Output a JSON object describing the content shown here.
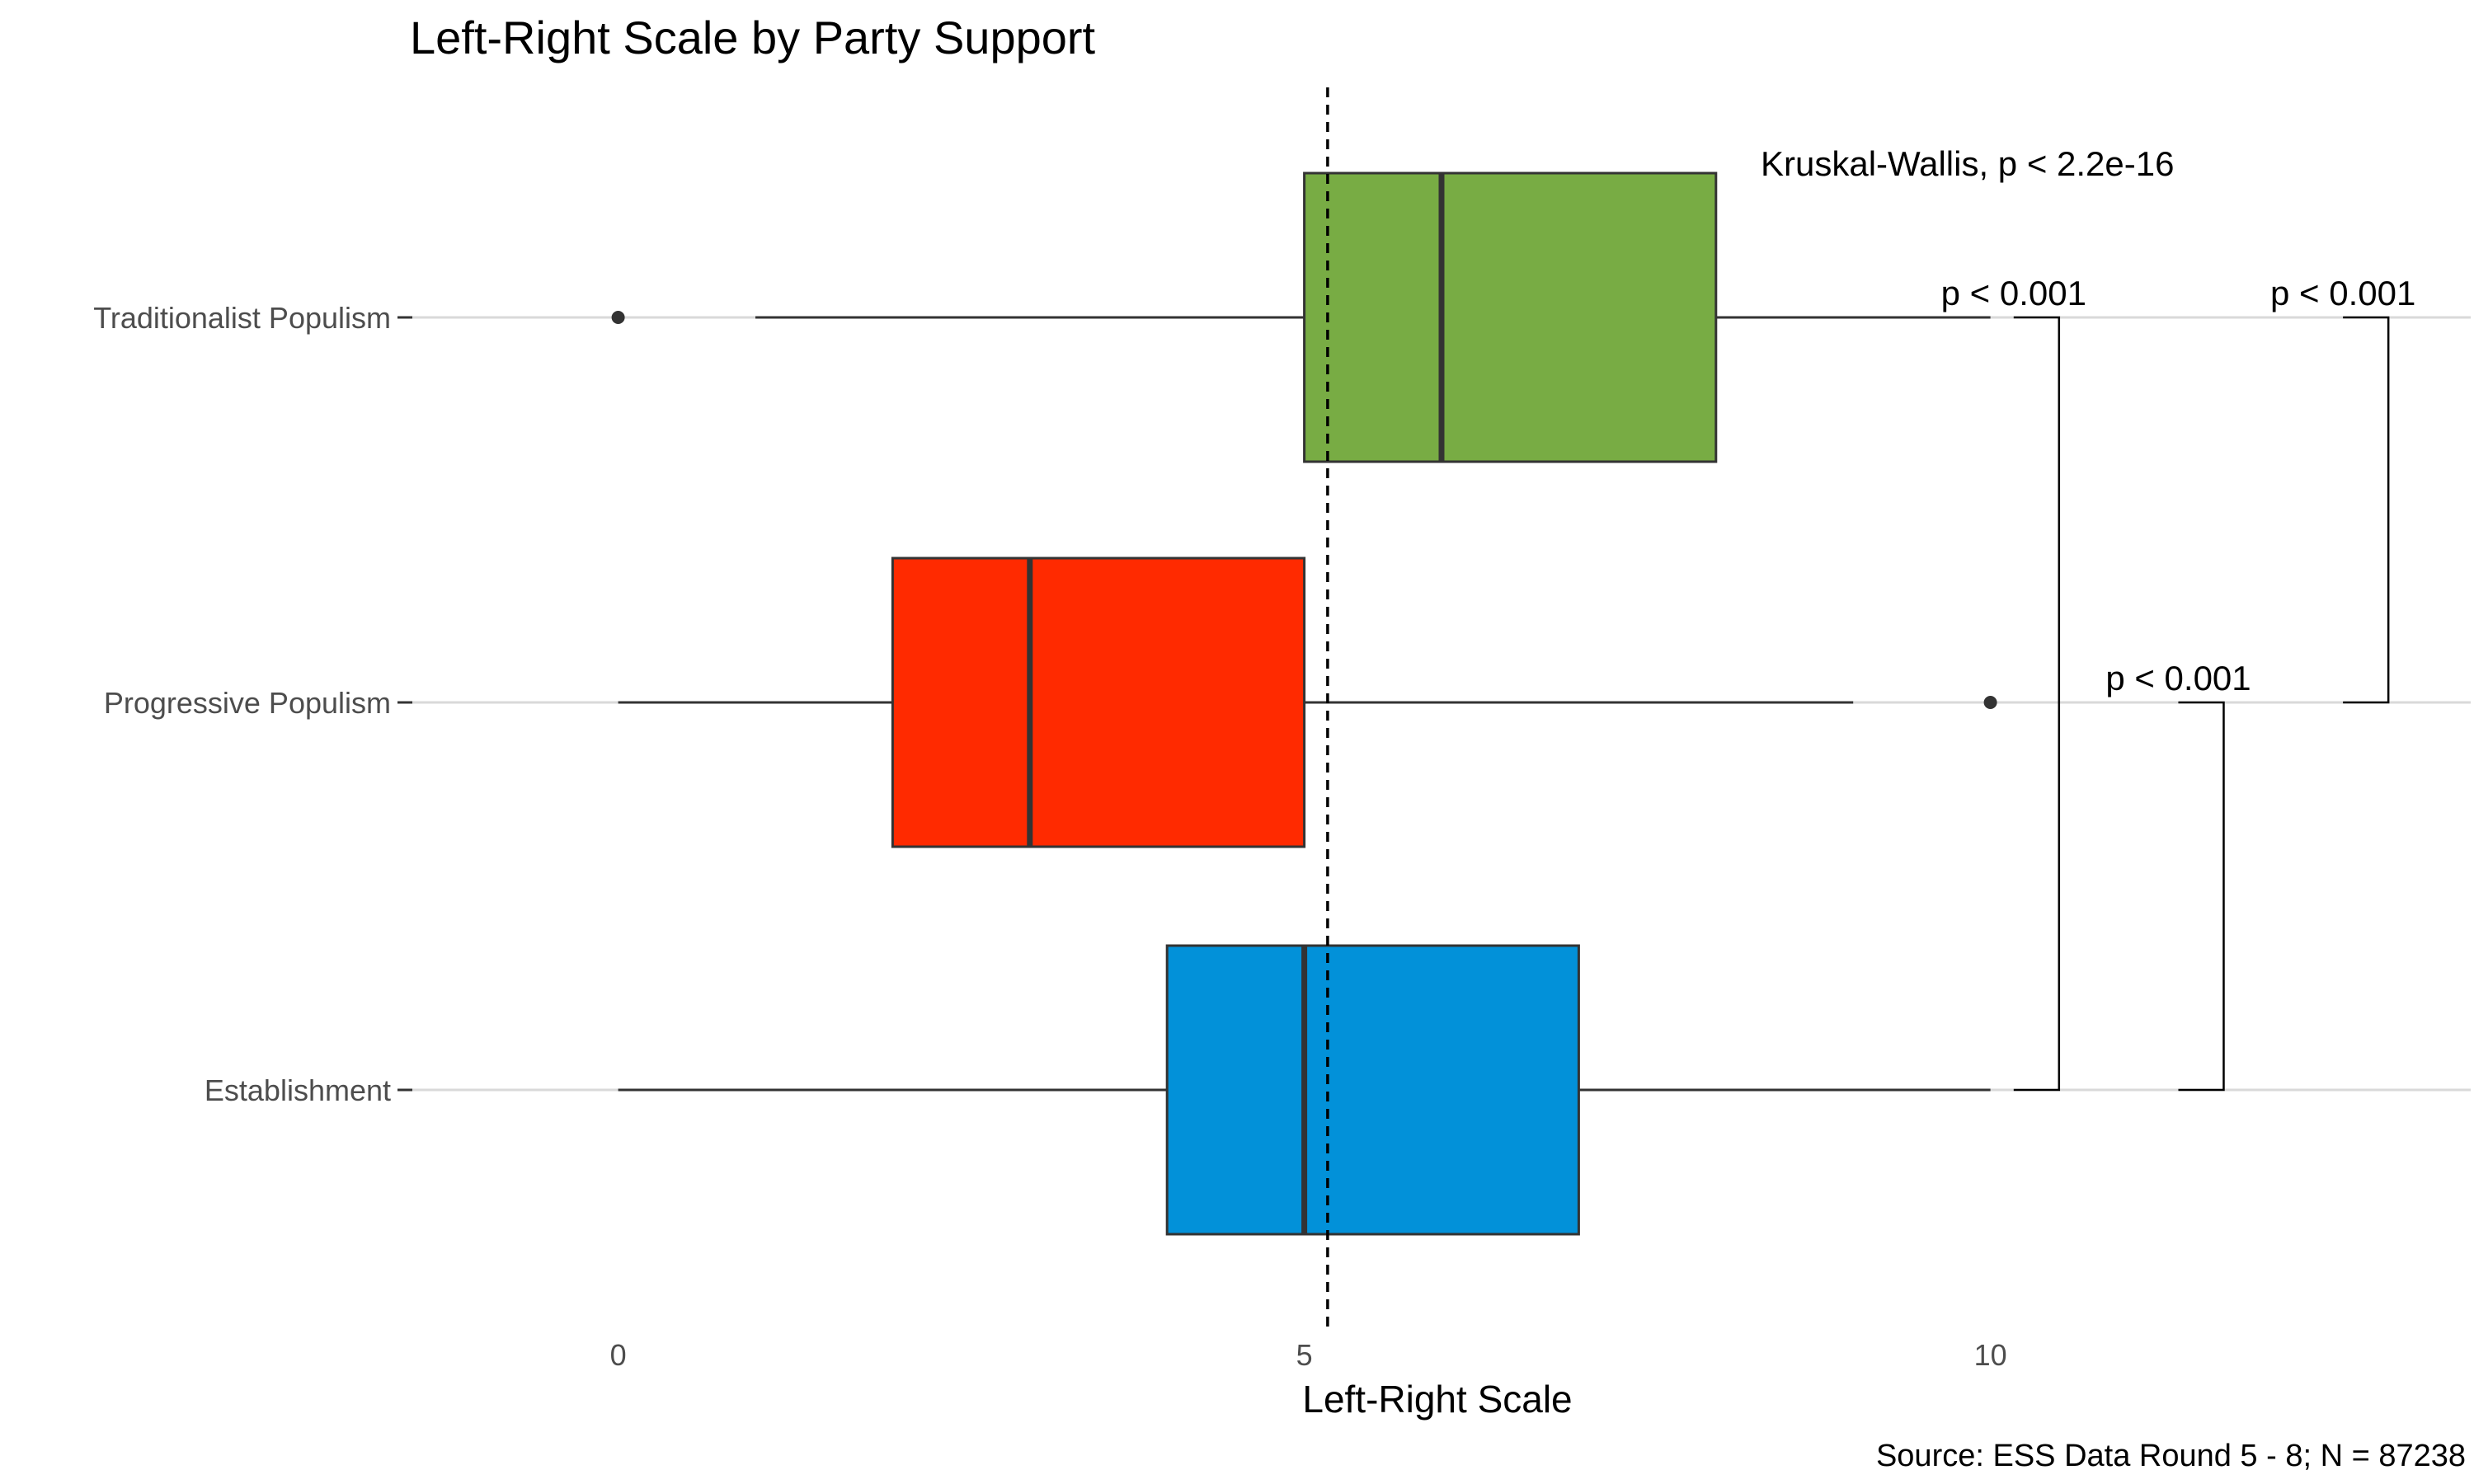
{
  "chart_data": {
    "type": "boxplot",
    "orientation": "horizontal",
    "title": "Left-Right Scale by Party Support",
    "xlabel": "Left-Right Scale",
    "ylabel": "",
    "caption": "Source: ESS Data Round 5 - 8; N = 87238",
    "xlim": [
      -1.5,
      13.5
    ],
    "xticks": [
      0,
      5,
      10
    ],
    "grid": "horizontal major only",
    "legend": "none",
    "reference_line": {
      "x": 5.17,
      "style": "dashed"
    },
    "categories": [
      "Traditionalist Populism",
      "Progressive Populism",
      "Establishment"
    ],
    "series": [
      {
        "category": "Traditionalist Populism",
        "whisker_low": 1,
        "q1": 5,
        "median": 6,
        "q3": 8,
        "whisker_high": 10,
        "outliers": [
          0
        ],
        "color": "#78AC44"
      },
      {
        "category": "Progressive Populism",
        "whisker_low": 0,
        "q1": 2,
        "median": 3,
        "q3": 5,
        "whisker_high": 9,
        "outliers": [
          10
        ],
        "color": "#FF2A00"
      },
      {
        "category": "Establishment",
        "whisker_low": 0,
        "q1": 4,
        "median": 5,
        "q3": 7,
        "whisker_high": 10,
        "outliers": [],
        "color": "#0291D9"
      }
    ],
    "annotations": {
      "overall_test": "Kruskal-Wallis, p < 2.2e-16",
      "comparisons": [
        {
          "group1": "Traditionalist Populism",
          "group2": "Establishment",
          "label": "p < 0.001",
          "bracket_x": 10.5
        },
        {
          "group1": "Traditionalist Populism",
          "group2": "Progressive Populism",
          "label": "p < 0.001",
          "bracket_x": 12.9
        },
        {
          "group1": "Progressive Populism",
          "group2": "Establishment",
          "label": "p < 0.001",
          "bracket_x": 11.7
        }
      ]
    }
  }
}
